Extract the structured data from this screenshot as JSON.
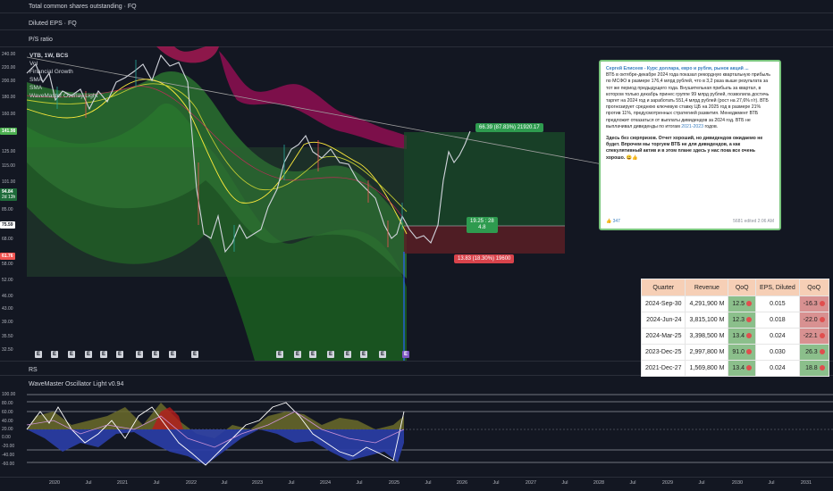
{
  "panes": {
    "shares_title": "Total common shares outstanding · FQ",
    "eps_title": "Diluted EPS · FQ",
    "ps_title": "P/S ratio",
    "rs_title": "RS",
    "osc_title": "WaveMaster Oscillator Light v0.94"
  },
  "legend": {
    "symbol": "VTB, 1W, BCS",
    "vol": "Vol",
    "fin": "Financial Growth",
    "sma1": "SMA",
    "sma2": "SMA",
    "wave": "WaveMaster Overlay Light"
  },
  "price_axis": [
    "240.00",
    "220.00",
    "200.00",
    "180.00",
    "160.00",
    "141.98",
    "125.00",
    "115.00",
    "101.00",
    "94.84",
    "85.00",
    "75.59",
    "68.00",
    "61.76",
    "58.00",
    "52.00",
    "46.00",
    "43.00",
    "39.00",
    "35.50",
    "32.50"
  ],
  "price_tags": {
    "current": "94.84",
    "current_sub": "2d 13h",
    "line": "141.98",
    "entry": "75.59",
    "stop": "61.76"
  },
  "osc_axis": [
    "100.00",
    "80.00",
    "60.00",
    "40.00",
    "20.00",
    "0.00",
    "-20.00",
    "-40.00",
    "-60.00"
  ],
  "time_axis": [
    "2020",
    "Jul",
    "2021",
    "Jul",
    "2022",
    "Jul",
    "2023",
    "Jul",
    "2024",
    "Jul",
    "2025",
    "Jul",
    "2026",
    "Jul",
    "2027",
    "Jul",
    "2028",
    "Jul",
    "2029",
    "Jul",
    "2030",
    "Jul",
    "2031"
  ],
  "trade": {
    "target": "66.39 (87.83%) 21920.17",
    "ratio": "19.25 : 28",
    "ratio_sub": "4.8",
    "stop": "13.83 (18.30%) 19600"
  },
  "earnings_marker": "E",
  "card": {
    "header": "Сергей Елисеев - Курс доллара, евро и рубля, рынок акций ...",
    "body": "ВТБ в октябре-декабре 2024 года показал рекордную квартальную прибыль по МСФО в размере 176,4 млрд рублей, что в 3,2 раза выше результата за тот же период предыдущего года. Внушительная прибыль за квартал, в котором только декабрь принес группе 99 млрд рублей, позволила достичь таргет на 2024 год и заработать 551,4 млрд рублей (рост на 27,6% г/г). ВТБ прогнозирует среднюю ключевую ставку ЦБ на 2025 год в размере 21% против 11%, предусмотренных стратегией развития. Менеджмент ВТБ предложит отказаться от выплаты дивидендов за 2024 год. ВТБ не выплачивал дивиденды по итогам",
    "years_link": "2021-2023",
    "body_end": "годов.",
    "bold": "Здесь без сюрпризов. Отчет хороший, но дивидендов ожидаемо не будет. Впрочем мы торгуем ВТБ не для дивидендов, а как спекулятивный актив и в этом плане здесь у нас пока все очень хорошо. 😀👍",
    "reaction": "👍 347",
    "views": "5681  edited 2:06 AM"
  },
  "table": {
    "headers": [
      "Quarter",
      "Revenue",
      "QoQ",
      "EPS, Diluted",
      "QoQ"
    ],
    "rows": [
      {
        "quarter": "2024-Sep-30",
        "revenue": "4,291,900 M",
        "qoq": "12.5",
        "eps": "0.015",
        "eps_qoq": "-16.3"
      },
      {
        "quarter": "2024-Jun-24",
        "revenue": "3,815,100 M",
        "qoq": "12.3",
        "eps": "0.018",
        "eps_qoq": "-22.0"
      },
      {
        "quarter": "2024-Mar-25",
        "revenue": "3,398,500 M",
        "qoq": "13.4",
        "eps": "0.024",
        "eps_qoq": "-22.1"
      },
      {
        "quarter": "2023-Dec-25",
        "revenue": "2,997,800 M",
        "qoq": "91.0",
        "eps": "0.030",
        "eps_qoq": "26.3"
      },
      {
        "quarter": "2021-Dec-27",
        "revenue": "1,569,800 M",
        "qoq": "13.4",
        "eps": "0.024",
        "eps_qoq": "18.8"
      }
    ]
  },
  "colors": {
    "background": "#131722",
    "up": "#26a69a",
    "down": "#ef5350",
    "green_band": "#1b5e20",
    "red_band": "#880e4f",
    "card_border": "#7bc67e",
    "table_header": "#f6cfb6"
  }
}
